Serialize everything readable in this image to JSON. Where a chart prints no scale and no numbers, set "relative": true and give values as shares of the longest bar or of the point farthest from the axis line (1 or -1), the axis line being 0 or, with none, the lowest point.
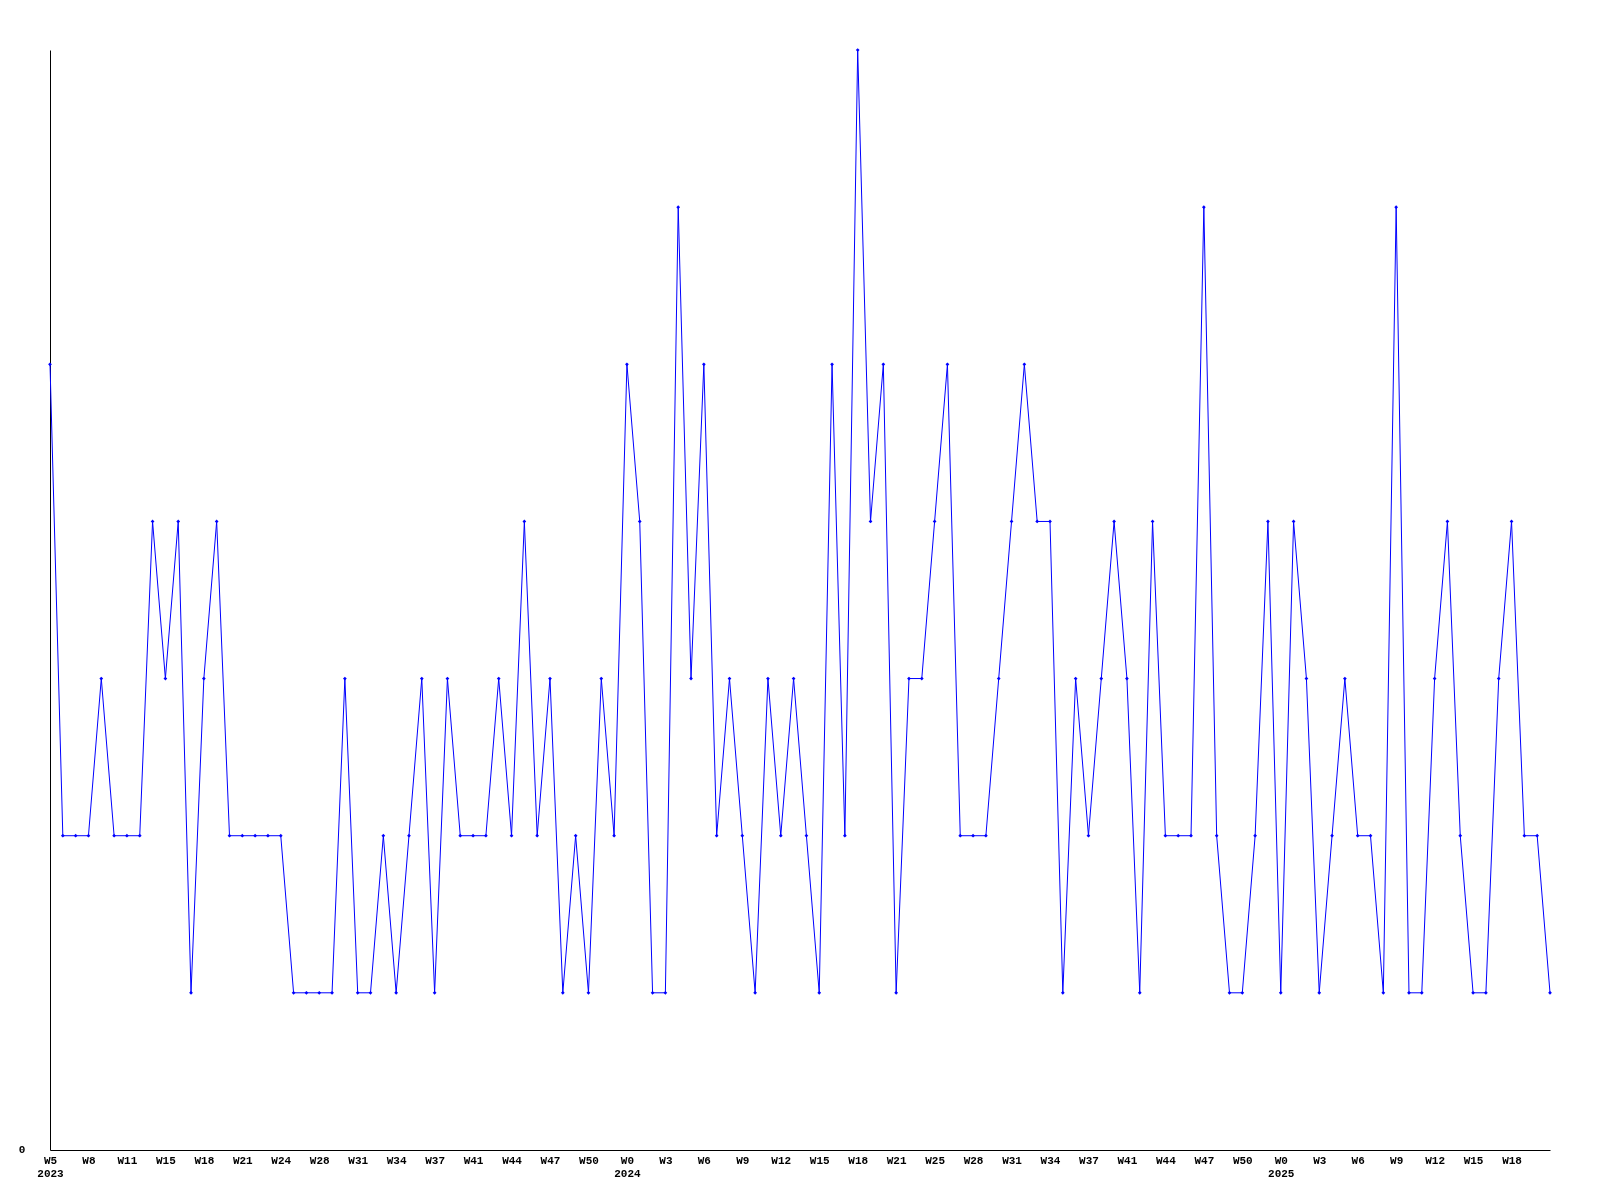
{
  "chart_data": {
    "type": "line",
    "relative": true,
    "marker": "diamond",
    "annotations": [
      "0"
    ],
    "categories": [
      "W5\n2023",
      null,
      null,
      "W8",
      null,
      null,
      "W11",
      null,
      null,
      "W15",
      null,
      null,
      "W18",
      null,
      null,
      "W21",
      null,
      null,
      "W24",
      null,
      null,
      "W28",
      null,
      null,
      "W31",
      null,
      null,
      "W34",
      null,
      null,
      "W37",
      null,
      null,
      "W41",
      null,
      null,
      "W44",
      null,
      null,
      "W47",
      null,
      null,
      "W50",
      null,
      null,
      "W0\n2024",
      null,
      null,
      "W3",
      null,
      null,
      "W6",
      null,
      null,
      "W9",
      null,
      null,
      "W12",
      null,
      null,
      "W15",
      null,
      null,
      "W18",
      null,
      null,
      "W21",
      null,
      null,
      "W25",
      null,
      null,
      "W28",
      null,
      null,
      "W31",
      null,
      null,
      "W34",
      null,
      null,
      "W37",
      null,
      null,
      "W41",
      null,
      null,
      "W44",
      null,
      null,
      "W47",
      null,
      null,
      "W50",
      null,
      null,
      "W0\n2025",
      null,
      null,
      "W3",
      null,
      null,
      "W6",
      null,
      null,
      "W9",
      null,
      null,
      "W12",
      null,
      null,
      "W15",
      null,
      null,
      "W18",
      null,
      null,
      null
    ],
    "series": [
      {
        "color": "#0000ff",
        "values": [
          0.7143,
          0.2857,
          0.2857,
          0.2857,
          0.4286,
          0.2857,
          0.2857,
          0.2857,
          0.5714,
          0.4286,
          0.5714,
          0.1429,
          0.4286,
          0.5714,
          0.2857,
          0.2857,
          0.2857,
          0.2857,
          0.2857,
          0.1429,
          0.1429,
          0.1429,
          0.1429,
          0.4286,
          0.1429,
          0.1429,
          0.2857,
          0.1429,
          0.2857,
          0.4286,
          0.1429,
          0.4286,
          0.2857,
          0.2857,
          0.2857,
          0.4286,
          0.2857,
          0.5714,
          0.2857,
          0.4286,
          0.1429,
          0.2857,
          0.1429,
          0.4286,
          0.2857,
          0.7143,
          0.5714,
          0.1429,
          0.1429,
          0.8571,
          0.4286,
          0.7143,
          0.2857,
          0.4286,
          0.2857,
          0.1429,
          0.4286,
          0.2857,
          0.4286,
          0.2857,
          0.1429,
          0.7143,
          0.2857,
          1,
          0.5714,
          0.7143,
          0.1429,
          0.4286,
          0.4286,
          0.5714,
          0.7143,
          0.2857,
          0.2857,
          0.2857,
          0.4286,
          0.5714,
          0.7143,
          0.5714,
          0.5714,
          0.1429,
          0.4286,
          0.2857,
          0.4286,
          0.5714,
          0.4286,
          0.1429,
          0.5714,
          0.2857,
          0.2857,
          0.2857,
          0.8571,
          0.2857,
          0.1429,
          0.1429,
          0.2857,
          0.5714,
          0.1429,
          0.5714,
          0.4286,
          0.1429,
          0.2857,
          0.4286,
          0.2857,
          0.2857,
          0.1429,
          0.8571,
          0.1429,
          0.1429,
          0.4286,
          0.5714,
          0.2857,
          0.1429,
          0.1429,
          0.4286,
          0.5714,
          0.2857,
          0.2857,
          0.1429
        ]
      }
    ]
  }
}
